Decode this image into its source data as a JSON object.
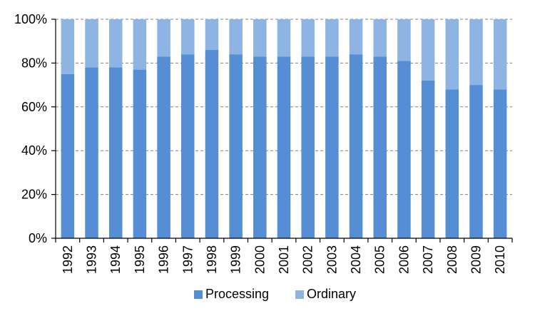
{
  "chart_data": {
    "type": "bar",
    "stacked": true,
    "percent_stacked": true,
    "title": "",
    "xlabel": "",
    "ylabel": "",
    "categories": [
      "1992",
      "1993",
      "1994",
      "1995",
      "1996",
      "1997",
      "1998",
      "1999",
      "2000",
      "2001",
      "2002",
      "2003",
      "2004",
      "2005",
      "2006",
      "2007",
      "2008",
      "2009",
      "2010"
    ],
    "series": [
      {
        "name": "Processing",
        "color": "#558ED5",
        "values": [
          75,
          78,
          78,
          77,
          83,
          84,
          86,
          84,
          83,
          83,
          83,
          83,
          84,
          83,
          81,
          72,
          68,
          70,
          68
        ]
      },
      {
        "name": "Ordinary",
        "color": "#8DB4E2",
        "values": [
          25,
          22,
          22,
          23,
          17,
          16,
          14,
          16,
          17,
          17,
          17,
          17,
          16,
          17,
          19,
          28,
          32,
          30,
          32
        ]
      }
    ],
    "ylim": [
      0,
      100
    ],
    "yticks": [
      "0%",
      "20%",
      "40%",
      "60%",
      "80%",
      "100%"
    ],
    "grid": true,
    "legend_position": "bottom"
  }
}
